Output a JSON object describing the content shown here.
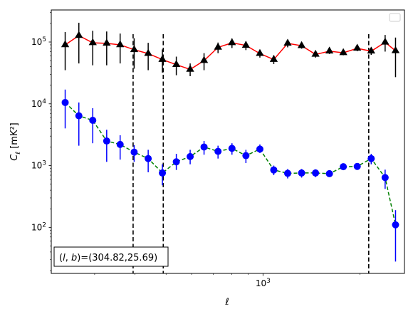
{
  "chart_data": {
    "type": "line",
    "xlabel": "ℓ",
    "ylabel_main": "C",
    "ylabel_sub": "ℓ",
    "ylabel_unit": "[mK²]",
    "xscale": "log",
    "yscale": "log",
    "xlim": [
      220,
      2750
    ],
    "ylim": [
      18,
      330000
    ],
    "x_ticks": [
      {
        "value": 1000,
        "base": "10",
        "exp": "3"
      }
    ],
    "y_ticks": [
      {
        "value": 100,
        "base": "10",
        "exp": "2"
      },
      {
        "value": 1000,
        "base": "10",
        "exp": "3"
      },
      {
        "value": 10000,
        "base": "10",
        "exp": "4"
      },
      {
        "value": 100000,
        "base": "10",
        "exp": "5"
      }
    ],
    "vlines": [
      395,
      490,
      2130
    ],
    "annotation": "(l, b)=(304.82,25.69)",
    "annotation_parts": {
      "prefix": "(",
      "l": "l",
      "sep": ", ",
      "b": "b",
      "suffix": ")=(304.82,25.69)"
    },
    "legend": {
      "placement": "top-right",
      "entries": []
    },
    "series": [
      {
        "marker": "triangle",
        "color": "#000000",
        "line_color": "#ff0000",
        "line_style": "solid",
        "points": [
          {
            "x": 243,
            "y": 90000,
            "lo": 35000,
            "hi": 145000
          },
          {
            "x": 268,
            "y": 127000,
            "lo": 45000,
            "hi": 205000
          },
          {
            "x": 296,
            "y": 97000,
            "lo": 42000,
            "hi": 152000
          },
          {
            "x": 327,
            "y": 95000,
            "lo": 42000,
            "hi": 148000
          },
          {
            "x": 360,
            "y": 90000,
            "lo": 45000,
            "hi": 137000
          },
          {
            "x": 398,
            "y": 75000,
            "lo": 37000,
            "hi": 115000
          },
          {
            "x": 440,
            "y": 65000,
            "lo": 35000,
            "hi": 97000
          },
          {
            "x": 487,
            "y": 52000,
            "lo": 32000,
            "hi": 76000
          },
          {
            "x": 538,
            "y": 43000,
            "lo": 29000,
            "hi": 58000
          },
          {
            "x": 594,
            "y": 36000,
            "lo": 28000,
            "hi": 45000
          },
          {
            "x": 656,
            "y": 50000,
            "lo": 35000,
            "hi": 66000
          },
          {
            "x": 725,
            "y": 82000,
            "lo": 66000,
            "hi": 98000
          },
          {
            "x": 801,
            "y": 97000,
            "lo": 80000,
            "hi": 114000
          },
          {
            "x": 885,
            "y": 88000,
            "lo": 74000,
            "hi": 103000
          },
          {
            "x": 978,
            "y": 65000,
            "lo": 56000,
            "hi": 75000
          },
          {
            "x": 1080,
            "y": 52000,
            "lo": 44000,
            "hi": 61000
          },
          {
            "x": 1193,
            "y": 95000,
            "lo": 82000,
            "hi": 108000
          },
          {
            "x": 1318,
            "y": 87000,
            "lo": 78000,
            "hi": 97000
          },
          {
            "x": 1456,
            "y": 63000,
            "lo": 56000,
            "hi": 71000
          },
          {
            "x": 1608,
            "y": 71000,
            "lo": 64000,
            "hi": 78000
          },
          {
            "x": 1776,
            "y": 67000,
            "lo": 61000,
            "hi": 74000
          },
          {
            "x": 1962,
            "y": 79000,
            "lo": 71000,
            "hi": 87000
          },
          {
            "x": 2168,
            "y": 71000,
            "lo": 62000,
            "hi": 81000
          },
          {
            "x": 2395,
            "y": 99000,
            "lo": 70000,
            "hi": 130000
          },
          {
            "x": 2580,
            "y": 72000,
            "lo": 27000,
            "hi": 118000
          }
        ]
      },
      {
        "marker": "circle",
        "color": "#0000ff",
        "line_color": "#008000",
        "line_style": "dashed",
        "points": [
          {
            "x": 243,
            "y": 10500,
            "lo": 4000,
            "hi": 17000
          },
          {
            "x": 268,
            "y": 6400,
            "lo": 2100,
            "hi": 10500
          },
          {
            "x": 296,
            "y": 5400,
            "lo": 2300,
            "hi": 8500
          },
          {
            "x": 327,
            "y": 2500,
            "lo": 1150,
            "hi": 3800
          },
          {
            "x": 360,
            "y": 2200,
            "lo": 1250,
            "hi": 3100
          },
          {
            "x": 398,
            "y": 1650,
            "lo": 1150,
            "hi": 2150
          },
          {
            "x": 440,
            "y": 1300,
            "lo": 780,
            "hi": 1800
          },
          {
            "x": 487,
            "y": 760,
            "lo": 480,
            "hi": 1050
          },
          {
            "x": 538,
            "y": 1150,
            "lo": 850,
            "hi": 1550
          },
          {
            "x": 594,
            "y": 1400,
            "lo": 1050,
            "hi": 1800
          },
          {
            "x": 656,
            "y": 2000,
            "lo": 1500,
            "hi": 2500
          },
          {
            "x": 725,
            "y": 1700,
            "lo": 1300,
            "hi": 2100
          },
          {
            "x": 801,
            "y": 1900,
            "lo": 1500,
            "hi": 2300
          },
          {
            "x": 885,
            "y": 1450,
            "lo": 1100,
            "hi": 1800
          },
          {
            "x": 978,
            "y": 1850,
            "lo": 1600,
            "hi": 2200
          },
          {
            "x": 1080,
            "y": 850,
            "lo": 700,
            "hi": 1000
          },
          {
            "x": 1193,
            "y": 750,
            "lo": 620,
            "hi": 880
          },
          {
            "x": 1318,
            "y": 760,
            "lo": 640,
            "hi": 880
          },
          {
            "x": 1456,
            "y": 760,
            "lo": 650,
            "hi": 870
          },
          {
            "x": 1608,
            "y": 740,
            "lo": 660,
            "hi": 820
          },
          {
            "x": 1776,
            "y": 960,
            "lo": 900,
            "hi": 1020
          },
          {
            "x": 1962,
            "y": 970,
            "lo": 900,
            "hi": 1040
          },
          {
            "x": 2168,
            "y": 1300,
            "lo": 1050,
            "hi": 1550
          },
          {
            "x": 2395,
            "y": 640,
            "lo": 420,
            "hi": 860
          },
          {
            "x": 2580,
            "y": 110,
            "lo": 28,
            "hi": 190
          }
        ]
      }
    ]
  }
}
